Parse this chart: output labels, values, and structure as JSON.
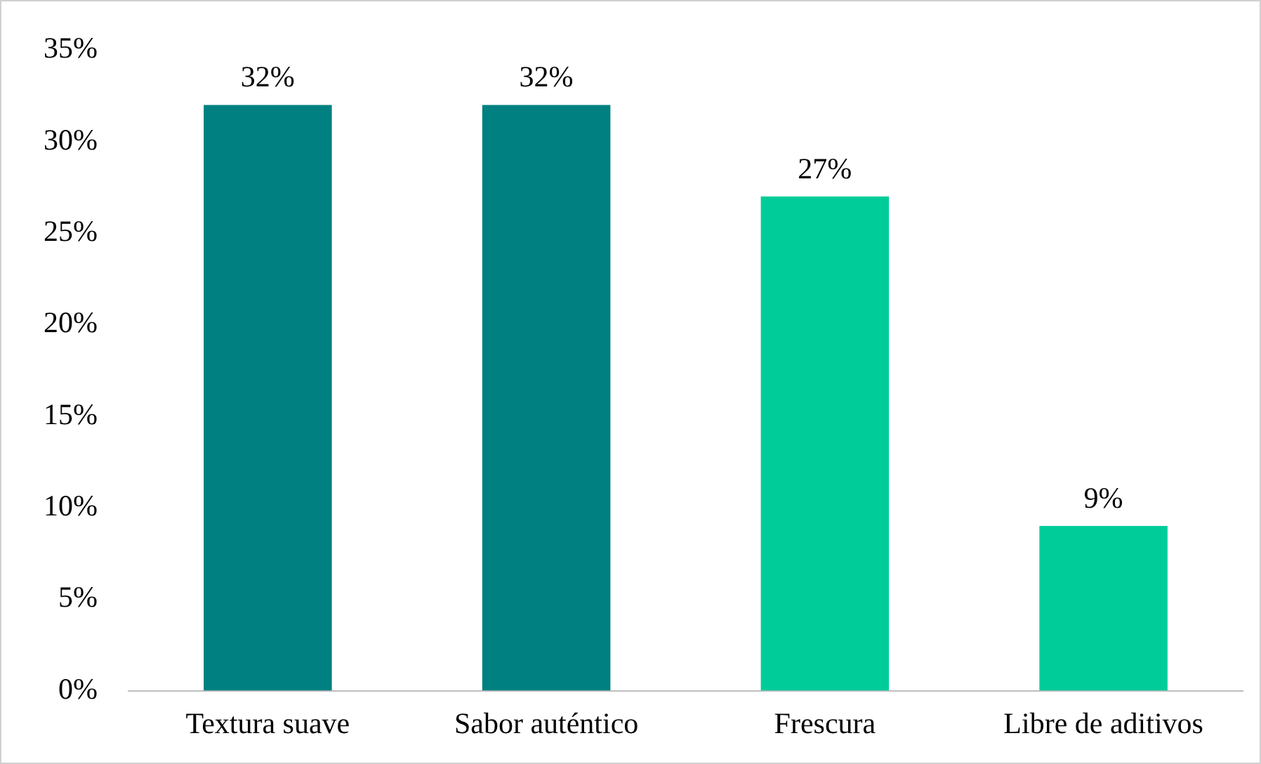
{
  "chart_data": {
    "type": "bar",
    "categories": [
      "Textura suave",
      "Sabor auténtico",
      "Frescura",
      "Libre de aditivos"
    ],
    "values": [
      32,
      32,
      27,
      9
    ],
    "colors": [
      "#008080",
      "#008080",
      "#00cc99",
      "#00cc99"
    ],
    "value_labels": [
      "32%",
      "32%",
      "27%",
      "9%"
    ],
    "ylim": [
      0,
      35
    ],
    "yticks": [
      {
        "value": 0,
        "label": "0%"
      },
      {
        "value": 5,
        "label": "5%"
      },
      {
        "value": 10,
        "label": "10%"
      },
      {
        "value": 15,
        "label": "15%"
      },
      {
        "value": 20,
        "label": "20%"
      },
      {
        "value": 25,
        "label": "25%"
      },
      {
        "value": 30,
        "label": "30%"
      },
      {
        "value": 35,
        "label": "35%"
      }
    ],
    "grid": false,
    "legend": false
  }
}
